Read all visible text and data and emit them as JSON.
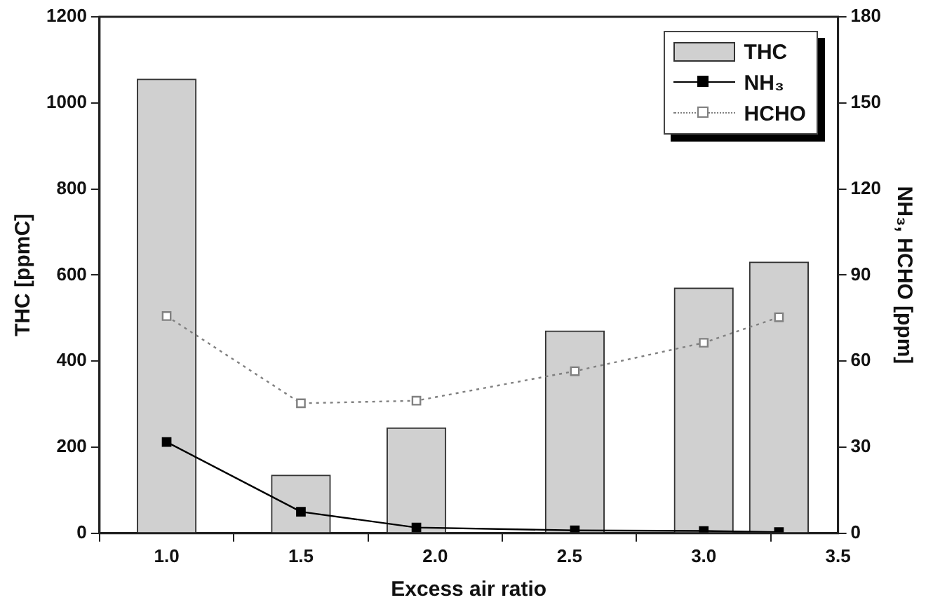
{
  "chart_data": {
    "type": "bar",
    "xlabel": "Excess air ratio",
    "ylabel": "THC [ppmC]",
    "y2label": "NH₃, HCHO [ppm]",
    "x": [
      1.0,
      1.5,
      1.93,
      2.52,
      3.0,
      3.28
    ],
    "xlim": [
      0.75,
      3.5
    ],
    "xticks": [
      {
        "value": 1.0,
        "label": "1.0"
      },
      {
        "value": 1.5,
        "label": "1.5"
      },
      {
        "value": 2.0,
        "label": "2.0"
      },
      {
        "value": 2.5,
        "label": "2.5"
      },
      {
        "value": 3.0,
        "label": "3.0"
      },
      {
        "value": 3.5,
        "label": "3.5"
      }
    ],
    "ylim": [
      0,
      1200
    ],
    "yticks": [
      0,
      200,
      400,
      600,
      800,
      1000,
      1200
    ],
    "y2lim": [
      0,
      180
    ],
    "y2ticks": [
      0,
      30,
      60,
      90,
      120,
      150,
      180
    ],
    "series": [
      {
        "name": "THC",
        "color": "#d0d0d0",
        "values": [
          1055,
          135,
          245,
          470,
          570,
          630
        ]
      },
      {
        "name": "NH₃",
        "type": "line",
        "axis": "y2",
        "color": "#000000",
        "marker": "square",
        "line_style": "solid",
        "values": [
          31.8,
          7.5,
          2,
          1,
          0.8,
          0.4
        ]
      },
      {
        "name": "HCHO",
        "type": "line",
        "axis": "y2",
        "color": "#808080",
        "marker": "square",
        "line_style": "dotted",
        "values": [
          75.7,
          45.3,
          46.2,
          56.5,
          66.4,
          75.3
        ]
      }
    ],
    "grid": false,
    "legend": "top right"
  }
}
